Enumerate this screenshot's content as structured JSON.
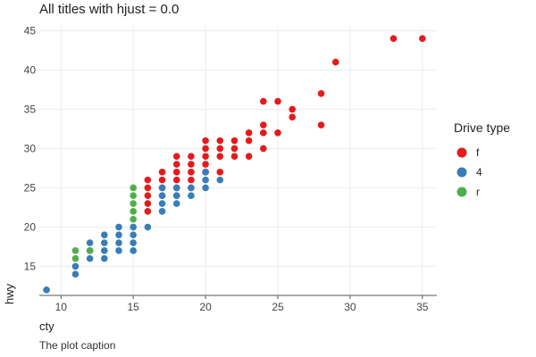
{
  "chart_data": {
    "type": "scatter",
    "title": "All titles with hjust = 0.0",
    "xlabel": "cty",
    "ylabel": "hwy",
    "caption": "The plot caption",
    "xlim": [
      8.5,
      36
    ],
    "ylim": [
      11.3,
      45.5
    ],
    "xticks": [
      10,
      15,
      20,
      25,
      30,
      35
    ],
    "yticks": [
      15,
      20,
      25,
      30,
      35,
      40,
      45
    ],
    "xtick_labels": [
      "10",
      "15",
      "20",
      "25",
      "30",
      "35"
    ],
    "ytick_labels": [
      "15",
      "20",
      "25",
      "30",
      "35",
      "40",
      "45"
    ],
    "grid": true,
    "legend": {
      "title": "Drive type",
      "placement": "right",
      "entries": [
        "f",
        "4",
        "r"
      ]
    },
    "colors": {
      "f": "#e41a1c",
      "4": "#377eb8",
      "r": "#4daf4a"
    },
    "series": [
      {
        "name": "f",
        "points": [
          [
            35,
            44
          ],
          [
            33,
            44
          ],
          [
            29,
            41
          ],
          [
            28,
            37
          ],
          [
            28,
            33
          ],
          [
            26,
            35
          ],
          [
            26,
            34
          ],
          [
            25,
            36
          ],
          [
            25,
            32
          ],
          [
            24,
            36
          ],
          [
            24,
            33
          ],
          [
            24,
            32
          ],
          [
            24,
            30
          ],
          [
            23,
            32
          ],
          [
            23,
            31
          ],
          [
            23,
            29
          ],
          [
            22,
            31
          ],
          [
            22,
            30
          ],
          [
            22,
            29
          ],
          [
            21,
            31
          ],
          [
            21,
            30
          ],
          [
            21,
            29
          ],
          [
            21,
            27
          ],
          [
            20,
            31
          ],
          [
            20,
            30
          ],
          [
            20,
            29
          ],
          [
            20,
            28
          ],
          [
            20,
            27
          ],
          [
            19,
            29
          ],
          [
            19,
            28
          ],
          [
            19,
            27
          ],
          [
            19,
            26
          ],
          [
            19,
            25
          ],
          [
            18,
            29
          ],
          [
            18,
            28
          ],
          [
            18,
            27
          ],
          [
            18,
            26
          ],
          [
            18,
            25
          ],
          [
            18,
            24
          ],
          [
            17,
            27
          ],
          [
            17,
            26
          ],
          [
            17,
            25
          ],
          [
            17,
            24
          ],
          [
            16,
            26
          ],
          [
            16,
            25
          ],
          [
            16,
            24
          ],
          [
            16,
            23
          ],
          [
            16,
            22
          ]
        ]
      },
      {
        "name": "4",
        "points": [
          [
            9,
            12
          ],
          [
            11,
            14
          ],
          [
            11,
            15
          ],
          [
            12,
            16
          ],
          [
            12,
            17
          ],
          [
            12,
            18
          ],
          [
            13,
            16
          ],
          [
            13,
            17
          ],
          [
            13,
            18
          ],
          [
            13,
            19
          ],
          [
            14,
            17
          ],
          [
            14,
            18
          ],
          [
            14,
            19
          ],
          [
            14,
            20
          ],
          [
            15,
            17
          ],
          [
            15,
            18
          ],
          [
            15,
            19
          ],
          [
            15,
            20
          ],
          [
            16,
            20
          ],
          [
            17,
            22
          ],
          [
            17,
            23
          ],
          [
            17,
            24
          ],
          [
            17,
            25
          ],
          [
            18,
            23
          ],
          [
            18,
            24
          ],
          [
            18,
            25
          ],
          [
            19,
            24
          ],
          [
            19,
            25
          ],
          [
            20,
            25
          ],
          [
            20,
            26
          ],
          [
            20,
            27
          ],
          [
            21,
            26
          ]
        ]
      },
      {
        "name": "r",
        "points": [
          [
            11,
            16
          ],
          [
            11,
            17
          ],
          [
            12,
            17
          ],
          [
            15,
            21
          ],
          [
            15,
            22
          ],
          [
            15,
            23
          ],
          [
            15,
            24
          ],
          [
            15,
            25
          ]
        ]
      }
    ]
  }
}
